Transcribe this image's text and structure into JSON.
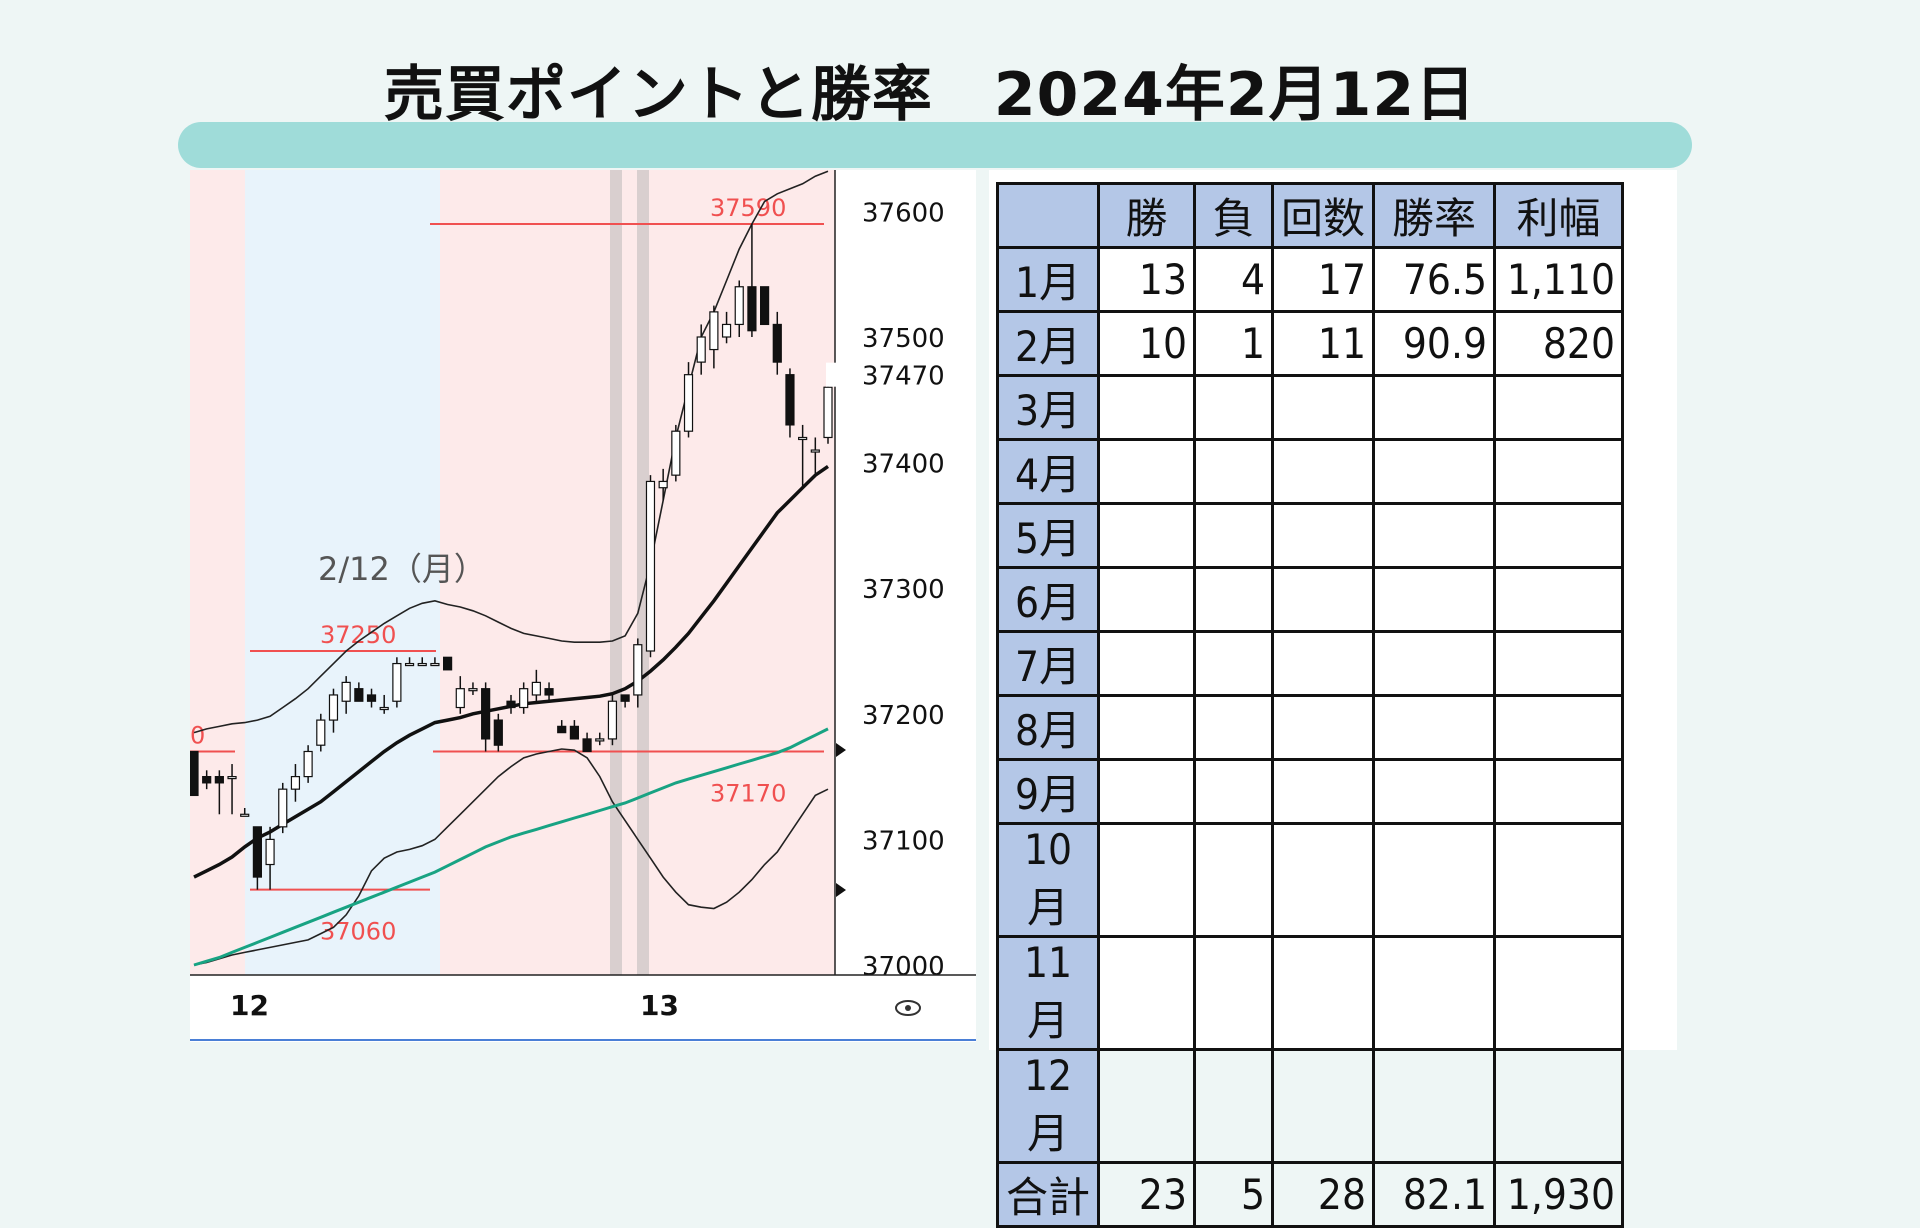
{
  "title": "売買ポイントと勝率　2024年2月12日",
  "colors": {
    "title_bar": "#9fdcd9",
    "session_blue": "#e8f3fb",
    "session_pink": "#fdeaea",
    "level_line": "#f05050",
    "ma_mid": "#111111",
    "ma_long": "#18a383",
    "table_header": "#b4c7e7"
  },
  "chart_data": {
    "type": "candlestick",
    "date_label": "2/12（月）",
    "ylim": [
      37000,
      37625
    ],
    "y_ticks": [
      37000,
      37100,
      37200,
      37300,
      37400,
      37500,
      37600
    ],
    "y_highlight": 37470,
    "x_labels": [
      "12",
      "13"
    ],
    "level_lines": [
      {
        "label": "37590",
        "value": 37590
      },
      {
        "label": "37250",
        "value": 37250
      },
      {
        "label": "37170",
        "value": 37170
      },
      {
        "label": "37060",
        "value": 37060
      },
      {
        "label": "0",
        "value": 37170
      }
    ],
    "candles": [
      [
        37170,
        37170,
        37135,
        37135
      ],
      [
        37150,
        37155,
        37140,
        37145
      ],
      [
        37150,
        37155,
        37120,
        37145
      ],
      [
        37150,
        37160,
        37120,
        37150
      ],
      [
        37120,
        37125,
        37120,
        37120
      ],
      [
        37110,
        37110,
        37060,
        37070
      ],
      [
        37080,
        37110,
        37060,
        37100
      ],
      [
        37110,
        37145,
        37105,
        37140
      ],
      [
        37140,
        37160,
        37130,
        37150
      ],
      [
        37150,
        37175,
        37145,
        37170
      ],
      [
        37175,
        37200,
        37170,
        37195
      ],
      [
        37195,
        37220,
        37185,
        37215
      ],
      [
        37210,
        37230,
        37200,
        37225
      ],
      [
        37220,
        37225,
        37210,
        37210
      ],
      [
        37215,
        37220,
        37205,
        37210
      ],
      [
        37205,
        37215,
        37200,
        37205
      ],
      [
        37210,
        37245,
        37205,
        37240
      ],
      [
        37240,
        37245,
        37240,
        37240
      ],
      [
        37240,
        37245,
        37240,
        37240
      ],
      [
        37240,
        37245,
        37240,
        37240
      ],
      [
        37245,
        37245,
        37235,
        37235
      ],
      [
        37205,
        37230,
        37200,
        37220
      ],
      [
        37220,
        37225,
        37215,
        37220
      ],
      [
        37220,
        37225,
        37170,
        37180
      ],
      [
        37195,
        37200,
        37170,
        37175
      ],
      [
        37210,
        37215,
        37200,
        37205
      ],
      [
        37205,
        37225,
        37200,
        37220
      ],
      [
        37215,
        37235,
        37210,
        37225
      ],
      [
        37220,
        37225,
        37210,
        37215
      ],
      [
        37190,
        37195,
        37185,
        37185
      ],
      [
        37190,
        37195,
        37180,
        37180
      ],
      [
        37180,
        37185,
        37170,
        37170
      ],
      [
        37180,
        37185,
        37175,
        37180
      ],
      [
        37180,
        37215,
        37175,
        37210
      ],
      [
        37215,
        37215,
        37205,
        37210
      ],
      [
        37215,
        37260,
        37205,
        37255
      ],
      [
        37250,
        37390,
        37245,
        37385
      ],
      [
        37380,
        37395,
        37370,
        37385
      ],
      [
        37390,
        37430,
        37385,
        37425
      ],
      [
        37425,
        37480,
        37420,
        37470
      ],
      [
        37480,
        37510,
        37470,
        37500
      ],
      [
        37490,
        37525,
        37475,
        37520
      ],
      [
        37500,
        37520,
        37495,
        37510
      ],
      [
        37510,
        37545,
        37500,
        37540
      ],
      [
        37540,
        37590,
        37500,
        37505
      ],
      [
        37540,
        37540,
        37510,
        37510
      ],
      [
        37510,
        37520,
        37470,
        37480
      ],
      [
        37470,
        37475,
        37420,
        37430
      ],
      [
        37420,
        37430,
        37380,
        37420
      ],
      [
        37410,
        37420,
        37390,
        37410
      ],
      [
        37420,
        37470,
        37415,
        37460
      ]
    ],
    "ma_mid": [
      37070,
      37075,
      37080,
      37086,
      37094,
      37101,
      37106,
      37112,
      37118,
      37124,
      37130,
      37138,
      37146,
      37154,
      37162,
      37170,
      37177,
      37183,
      37188,
      37193,
      37195,
      37197,
      37200,
      37202,
      37204,
      37206,
      37208,
      37209,
      37210,
      37211,
      37212,
      37213,
      37214,
      37216,
      37220,
      37226,
      37234,
      37243,
      37253,
      37264,
      37277,
      37290,
      37304,
      37318,
      37332,
      37346,
      37360,
      37370,
      37380,
      37390,
      37397
    ],
    "ma_long": [
      37000,
      37003,
      37006,
      37010,
      37014,
      37018,
      37022,
      37026,
      37030,
      37034,
      37038,
      37042,
      37046,
      37050,
      37054,
      37058,
      37062,
      37066,
      37070,
      37074,
      37079,
      37084,
      37089,
      37094,
      37098,
      37102,
      37105,
      37108,
      37111,
      37114,
      37117,
      37120,
      37123,
      37126,
      37129,
      37133,
      37137,
      37141,
      37145,
      37148,
      37151,
      37154,
      37157,
      37160,
      37163,
      37166,
      37169,
      37173,
      37178,
      37183,
      37188
    ],
    "band_upper": [
      37185,
      37188,
      37190,
      37192,
      37193,
      37195,
      37198,
      37205,
      37212,
      37220,
      37230,
      37240,
      37250,
      37258,
      37265,
      37272,
      37278,
      37284,
      37288,
      37290,
      37287,
      37285,
      37282,
      37278,
      37273,
      37268,
      37264,
      37262,
      37260,
      37258,
      37257,
      37257,
      37257,
      37258,
      37262,
      37280,
      37320,
      37370,
      37420,
      37460,
      37500,
      37520,
      37545,
      37570,
      37590,
      37608,
      37614,
      37618,
      37622,
      37628,
      37632
    ],
    "band_lower": [
      37000,
      37002,
      37005,
      37008,
      37010,
      37012,
      37014,
      37016,
      37018,
      37020,
      37025,
      37030,
      37040,
      37055,
      37075,
      37085,
      37090,
      37092,
      37095,
      37100,
      37110,
      37120,
      37130,
      37140,
      37150,
      37158,
      37165,
      37168,
      37170,
      37172,
      37171,
      37165,
      37150,
      37130,
      37115,
      37100,
      37085,
      37070,
      37058,
      37048,
      37046,
      37045,
      37050,
      37058,
      37068,
      37080,
      37090,
      37105,
      37120,
      37135,
      37140
    ]
  },
  "table": {
    "headers": [
      "",
      "勝",
      "負",
      "回数",
      "勝率",
      "利幅"
    ],
    "rows": [
      [
        "1月",
        "13",
        "4",
        "17",
        "76.5",
        "1,110"
      ],
      [
        "2月",
        "10",
        "1",
        "11",
        "90.9",
        "820"
      ],
      [
        "3月",
        "",
        "",
        "",
        "",
        ""
      ],
      [
        "4月",
        "",
        "",
        "",
        "",
        ""
      ],
      [
        "5月",
        "",
        "",
        "",
        "",
        ""
      ],
      [
        "6月",
        "",
        "",
        "",
        "",
        ""
      ],
      [
        "7月",
        "",
        "",
        "",
        "",
        ""
      ],
      [
        "8月",
        "",
        "",
        "",
        "",
        ""
      ],
      [
        "9月",
        "",
        "",
        "",
        "",
        ""
      ],
      [
        "10月",
        "",
        "",
        "",
        "",
        ""
      ],
      [
        "11月",
        "",
        "",
        "",
        "",
        ""
      ],
      [
        "12月",
        "",
        "",
        "",
        "",
        ""
      ],
      [
        "合計",
        "23",
        "5",
        "28",
        "82.1",
        "1,930"
      ]
    ]
  }
}
